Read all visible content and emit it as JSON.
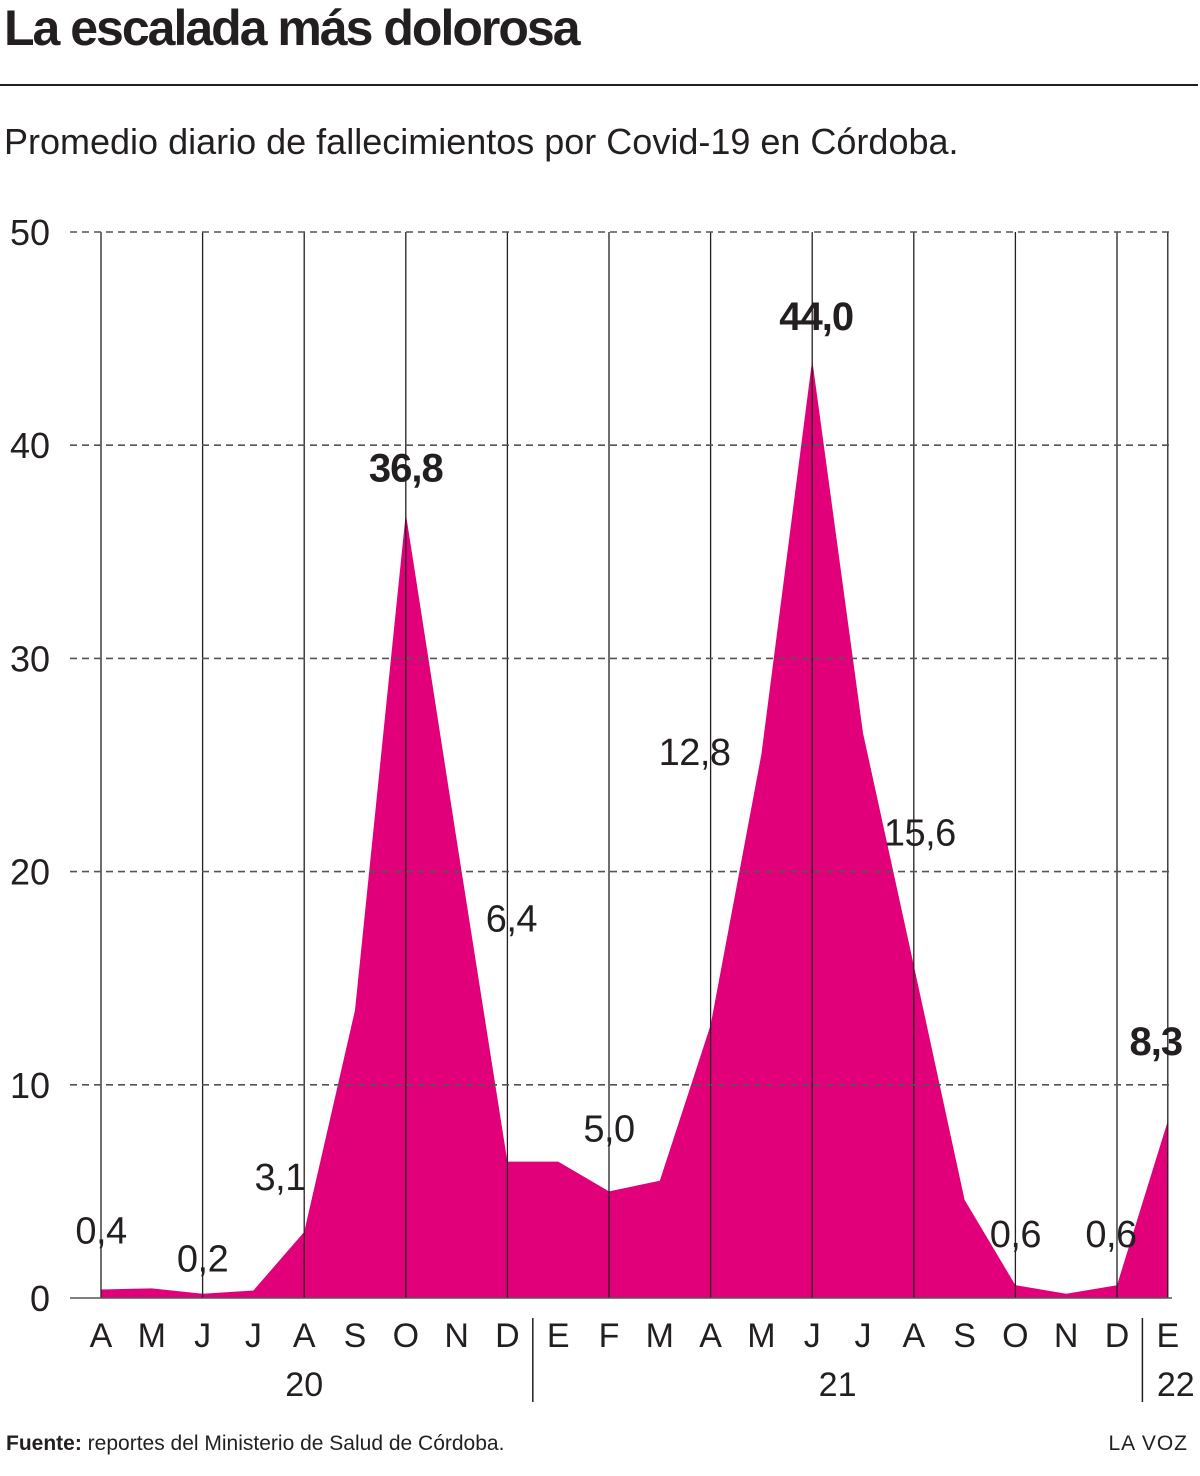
{
  "title": "La escalada más dolorosa",
  "subtitle": "Promedio diario de fallecimientos por Covid-19 en Córdoba.",
  "footer": {
    "source_label": "Fuente:",
    "source_text": "reportes del Ministerio de Salud de Córdoba.",
    "brand": "LA VOZ"
  },
  "colors": {
    "area": "#e2007a",
    "grid": "#555555",
    "text": "#231f20"
  },
  "chart_data": {
    "type": "area",
    "title": "La escalada más dolorosa",
    "subtitle": "Promedio diario de fallecimientos por Covid-19 en Córdoba.",
    "ylim": [
      0,
      50
    ],
    "yticks": [
      0,
      10,
      20,
      30,
      40,
      50
    ],
    "grid": "dashed-horizontal",
    "month_labels": [
      "A",
      "M",
      "J",
      "J",
      "A",
      "S",
      "O",
      "N",
      "D",
      "E",
      "F",
      "M",
      "A",
      "M",
      "J",
      "J",
      "A",
      "S",
      "O",
      "N",
      "D",
      "E"
    ],
    "years": [
      {
        "label": "20",
        "start": 0,
        "end": 8
      },
      {
        "label": "21",
        "start": 9,
        "end": 20
      },
      {
        "label": "22",
        "start": 21,
        "end": 21
      }
    ],
    "series": [
      {
        "values": [
          0.4,
          0.45,
          0.2,
          0.35,
          3.1,
          13.5,
          36.8,
          21.5,
          6.4,
          6.4,
          5.0,
          5.5,
          12.8,
          25.5,
          44.0,
          26.5,
          15.6,
          4.6,
          0.6,
          0.2,
          0.6,
          8.3
        ]
      }
    ],
    "annotations": [
      {
        "index": 0,
        "label": "0,4",
        "bold": false
      },
      {
        "index": 2,
        "label": "0,2",
        "bold": false
      },
      {
        "index": 4,
        "label": "3,1",
        "bold": false
      },
      {
        "index": 6,
        "label": "36,8",
        "bold": true
      },
      {
        "index": 8,
        "label": "6,4",
        "bold": false
      },
      {
        "index": 10,
        "label": "5,0",
        "bold": false
      },
      {
        "index": 12,
        "label": "12,8",
        "bold": false
      },
      {
        "index": 14,
        "label": "44,0",
        "bold": true
      },
      {
        "index": 16,
        "label": "15,6",
        "bold": false
      },
      {
        "index": 18,
        "label": "0,6",
        "bold": false
      },
      {
        "index": 20,
        "label": "0,6",
        "bold": false
      },
      {
        "index": 21,
        "label": "8,3",
        "bold": true
      }
    ]
  }
}
